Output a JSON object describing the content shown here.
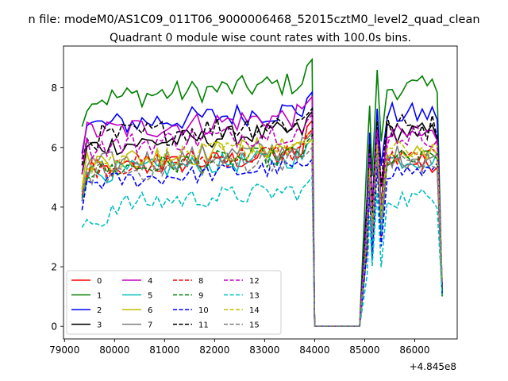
{
  "suptitle": "n file: modeM0/AS1C09_011T06_9000006468_52015cztM0_level2_quad_clean",
  "chart_data": {
    "type": "line",
    "title": "Quadrant 0 module wise count rates with 100.0s bins.",
    "xlabel": "",
    "ylabel": "",
    "x_offset_label": "+4.845e8",
    "xlim": [
      78980,
      86850
    ],
    "ylim": [
      -0.42,
      9.4
    ],
    "xticks": [
      79000,
      80000,
      81000,
      82000,
      83000,
      84000,
      85000,
      86000
    ],
    "yticks": [
      0,
      2,
      4,
      6,
      8
    ],
    "grid": false,
    "legend": {
      "placement": "lower-left",
      "columns": 4
    },
    "x_start": 79350,
    "x_step": 100,
    "gaps": [
      {
        "from": 84000,
        "to": 84900,
        "value": 0
      }
    ],
    "series": [
      {
        "name": "0",
        "color": "#ff0000",
        "dash": "solid",
        "level": 5.2,
        "amp": 0.35,
        "peak": 6.9,
        "post": 5.5
      },
      {
        "name": "1",
        "color": "#008000",
        "dash": "solid",
        "level": 7.6,
        "amp": 0.4,
        "peak": 8.95,
        "post": 8.0
      },
      {
        "name": "2",
        "color": "#0000ff",
        "dash": "solid",
        "level": 6.7,
        "amp": 0.4,
        "peak": 7.85,
        "post": 7.1
      },
      {
        "name": "3",
        "color": "#000000",
        "dash": "solid",
        "level": 6.0,
        "amp": 0.35,
        "peak": 7.2,
        "post": 6.5
      },
      {
        "name": "4",
        "color": "#bf00bf",
        "dash": "solid",
        "level": 6.5,
        "amp": 0.4,
        "peak": 7.7,
        "post": 6.4
      },
      {
        "name": "5",
        "color": "#00bfbf",
        "dash": "solid",
        "level": 5.1,
        "amp": 0.35,
        "peak": 6.3,
        "post": 5.6
      },
      {
        "name": "6",
        "color": "#bfbf00",
        "dash": "solid",
        "level": 5.5,
        "amp": 0.4,
        "peak": 6.6,
        "post": 5.8
      },
      {
        "name": "7",
        "color": "#808080",
        "dash": "solid",
        "level": 5.4,
        "amp": 0.4,
        "peak": 6.5,
        "post": 5.7
      },
      {
        "name": "8",
        "color": "#ff0000",
        "dash": "dashed",
        "level": 5.3,
        "amp": 0.35,
        "peak": 6.6,
        "post": 5.6
      },
      {
        "name": "9",
        "color": "#008000",
        "dash": "dashed",
        "level": 5.2,
        "amp": 0.35,
        "peak": 6.4,
        "post": 5.6
      },
      {
        "name": "10",
        "color": "#0000ff",
        "dash": "dashed",
        "level": 4.8,
        "amp": 0.3,
        "peak": 5.6,
        "post": 5.2
      },
      {
        "name": "11",
        "color": "#000000",
        "dash": "dashed",
        "level": 6.3,
        "amp": 0.45,
        "peak": 7.3,
        "post": 6.7
      },
      {
        "name": "12",
        "color": "#bf00bf",
        "dash": "dashed",
        "level": 6.0,
        "amp": 0.4,
        "peak": 7.1,
        "post": 6.4
      },
      {
        "name": "13",
        "color": "#00bfbf",
        "dash": "dashed",
        "level": 4.0,
        "amp": 0.35,
        "peak": 5.0,
        "post": 4.3
      },
      {
        "name": "14",
        "color": "#bfbf00",
        "dash": "dashed",
        "level": 5.5,
        "amp": 0.35,
        "peak": 6.3,
        "post": 5.9
      },
      {
        "name": "15",
        "color": "#808080",
        "dash": "dashed",
        "level": 5.1,
        "amp": 0.4,
        "peak": 6.0,
        "post": 5.5
      }
    ]
  }
}
